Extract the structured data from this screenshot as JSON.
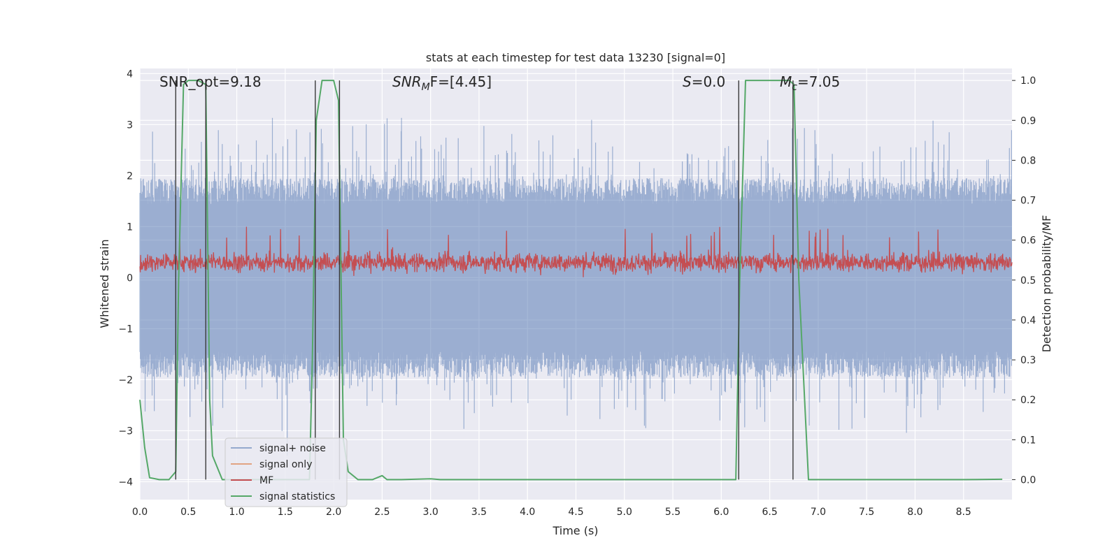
{
  "chart_data": {
    "type": "line",
    "title": "stats at each timestep for test data 13230 [signal=0]",
    "xlabel": "Time (s)",
    "ylabel_left": "Whitened strain",
    "ylabel_right": "Detection probability/MF",
    "xlim": [
      0.0,
      9.0
    ],
    "ylim_left": [
      -4.35,
      4.1
    ],
    "ylim_right": [
      -0.05,
      1.03
    ],
    "xticks": [
      "0.0",
      "0.5",
      "1.0",
      "1.5",
      "2.0",
      "2.5",
      "3.0",
      "3.5",
      "4.0",
      "4.5",
      "5.0",
      "5.5",
      "6.0",
      "6.5",
      "7.0",
      "7.5",
      "8.0",
      "8.5"
    ],
    "yticks_left": [
      "4",
      "3",
      "2",
      "1",
      "0",
      "−1",
      "−2",
      "−3",
      "−4"
    ],
    "yticks_right": [
      "1.0",
      "0.9",
      "0.8",
      "0.7",
      "0.6",
      "0.5",
      "0.4",
      "0.3",
      "0.2",
      "0.1",
      "0.0"
    ],
    "annotations": {
      "snr_opt": "SNR_opt=9.18",
      "snr_mf_main": "SNR",
      "snr_mf_sub": "M",
      "snr_mf_rest": "F=[4.45]",
      "s_main": "S",
      "s_rest": "=0.0",
      "mc_main": "M",
      "mc_sub": "c",
      "mc_rest": "=7.05"
    },
    "grid": true,
    "legend_placement": "lower-left",
    "series": [
      {
        "name": "signal+ noise",
        "color": "#4c72b0",
        "axis": "left",
        "style": "noise band",
        "typical_range": [
          -1.7,
          1.7
        ],
        "peak_range": [
          -3.8,
          3.6
        ]
      },
      {
        "name": "signal only",
        "color": "#dd8452",
        "axis": "left",
        "values": []
      },
      {
        "name": "MF",
        "color": "#c44e52",
        "axis": "left",
        "style": "noise band",
        "typical_range": [
          0.05,
          0.55
        ],
        "peak_range": [
          -0.05,
          1.0
        ]
      },
      {
        "name": "signal statistics",
        "color": "#55a868",
        "axis": "right",
        "x": [
          0.0,
          0.05,
          0.1,
          0.2,
          0.3,
          0.37,
          0.4,
          0.45,
          0.5,
          0.6,
          0.68,
          0.72,
          0.75,
          0.85,
          1.2,
          1.6,
          1.75,
          1.78,
          1.82,
          1.88,
          1.93,
          2.0,
          2.05,
          2.1,
          2.15,
          2.25,
          2.4,
          2.5,
          2.55,
          2.7,
          3.0,
          3.1,
          4.0,
          5.0,
          6.0,
          6.15,
          6.19,
          6.25,
          6.3,
          6.5,
          6.7,
          6.75,
          6.8,
          6.9,
          7.5,
          8.0,
          8.5,
          8.9
        ],
        "values": [
          0.2,
          0.08,
          0.005,
          0.0,
          0.0,
          0.02,
          0.5,
          0.99,
          1.0,
          1.0,
          0.99,
          0.2,
          0.06,
          0.0,
          0.0,
          0.0,
          0.0,
          0.3,
          0.9,
          1.0,
          1.0,
          1.0,
          0.95,
          0.1,
          0.02,
          0.0,
          0.0,
          0.01,
          0.0,
          0.0,
          0.002,
          0.0,
          0.0,
          0.0,
          0.0,
          0.0,
          0.5,
          1.0,
          1.0,
          1.0,
          1.0,
          0.99,
          0.5,
          0.0,
          0.0,
          0.0,
          0.0,
          0.001
        ]
      },
      {
        "name": "vertical markers",
        "color": "#3a3a3a",
        "axis": "right",
        "x": [
          0.37,
          0.68,
          1.81,
          2.06,
          6.18,
          6.74
        ],
        "range": [
          0.0,
          1.0
        ],
        "legend": false
      }
    ]
  }
}
